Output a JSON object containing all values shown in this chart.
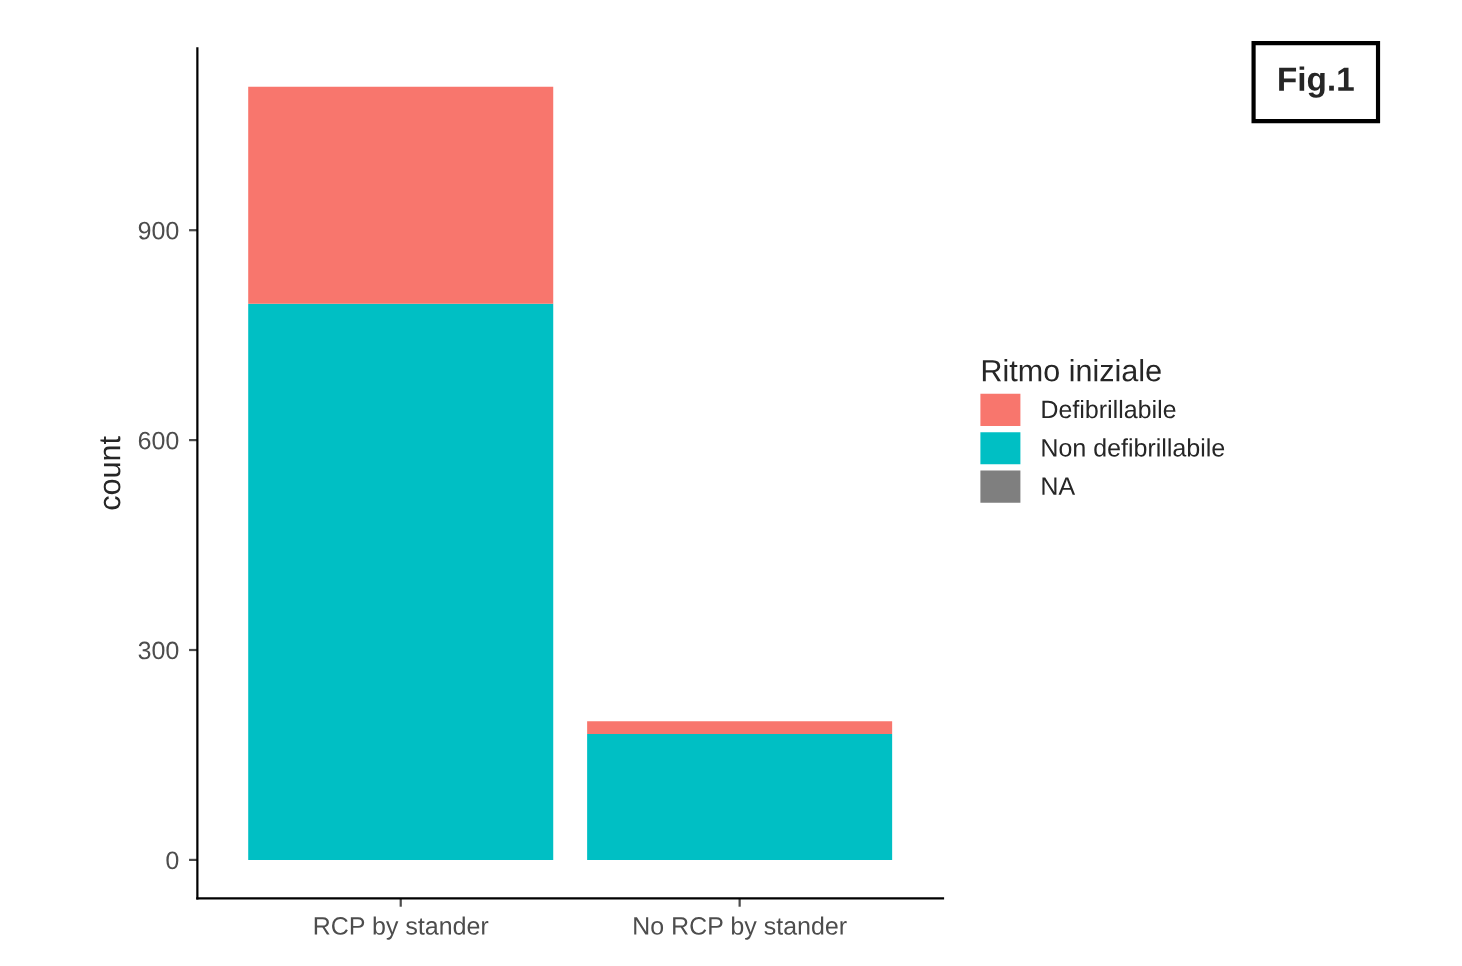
{
  "chart_data": {
    "type": "bar",
    "stacked": true,
    "ylabel": "count",
    "legend_title": "Ritmo iniziale",
    "legend": "right",
    "categories": [
      "RCP by stander",
      "No RCP by stander"
    ],
    "series": [
      {
        "name": "NA",
        "color": "#7f7f7f",
        "values": [
          0,
          0
        ]
      },
      {
        "name": "Non defibrillabile",
        "color": "#00bfc4",
        "values": [
          795,
          180
        ]
      },
      {
        "name": "Defibrillabile",
        "color": "#f8766d",
        "values": [
          310,
          18
        ]
      }
    ],
    "ylim": [
      -55,
      1160
    ],
    "yticks": [
      0,
      300,
      600,
      900
    ],
    "grid": false,
    "annotations": [
      "Fig.1"
    ]
  }
}
